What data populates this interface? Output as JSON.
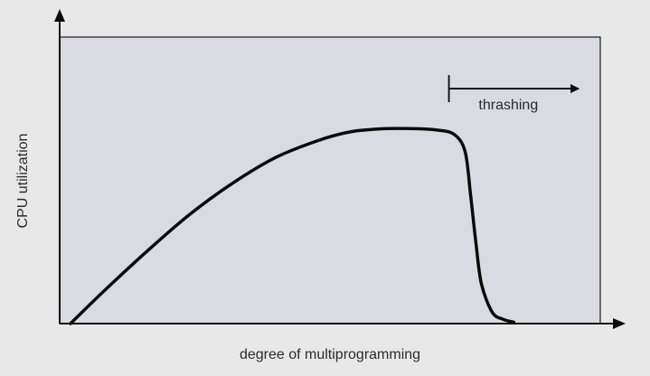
{
  "chart_data": {
    "type": "line",
    "title": "",
    "xlabel": "degree of multiprogramming",
    "ylabel": "CPU utilization",
    "xlim": [
      0,
      100
    ],
    "ylim": [
      0,
      100
    ],
    "grid": false,
    "background": "#dadbe2",
    "outer_background": "#e8e8e8",
    "line_color": "#0a0a0a",
    "series": [
      {
        "name": "",
        "x": [
          2,
          8,
          16,
          24,
          32,
          40,
          48,
          54,
          60,
          66,
          70,
          73,
          75,
          76,
          77,
          78,
          80,
          82,
          84
        ],
        "y": [
          0,
          11,
          25,
          38,
          49,
          58,
          64,
          67,
          68,
          68,
          67.5,
          66,
          60,
          45,
          28,
          14,
          4,
          1.5,
          0.5
        ]
      }
    ],
    "annotations": [
      {
        "text": "thrashing",
        "type": "arrow",
        "x_start": 72,
        "x_end": 96,
        "y": 82
      }
    ]
  }
}
